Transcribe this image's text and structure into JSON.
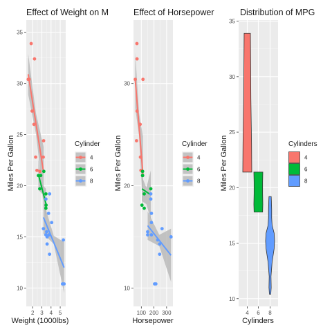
{
  "palette": {
    "4": "#F8766D",
    "6": "#00BA38",
    "8": "#619CFF"
  },
  "panel_bg": "#EBEBEB",
  "ribbon": "#B3B3B3",
  "chart_data": [
    {
      "type": "scatter",
      "title": "Effect of Weight on M",
      "xlabel": "Weight (1000lbs)",
      "ylabel": "Miles Per Gallon",
      "xlim": [
        1.3,
        5.6
      ],
      "ylim": [
        8.2,
        36.2
      ],
      "xticks": [
        2,
        3,
        4,
        5
      ],
      "yticks": [
        10,
        15,
        20,
        25,
        30,
        35
      ],
      "grid": true,
      "smooth": "lm",
      "legend": {
        "title": "Cylinder",
        "labels": [
          "4",
          "6",
          "8"
        ],
        "placement": "right"
      },
      "series": [
        {
          "name": "4",
          "points": [
            [
              2.32,
              22.8
            ],
            [
              3.19,
              24.4
            ],
            [
              3.15,
              22.8
            ],
            [
              2.2,
              32.4
            ],
            [
              1.615,
              30.4
            ],
            [
              1.835,
              33.9
            ],
            [
              2.465,
              21.5
            ],
            [
              1.935,
              27.3
            ],
            [
              2.14,
              26.0
            ],
            [
              1.513,
              30.4
            ],
            [
              2.78,
              21.4
            ]
          ],
          "fit": {
            "x": [
              1.513,
              3.19
            ],
            "y": [
              30.9,
              21.3
            ],
            "ci": [
              [
                1.513,
                28.9,
                32.9
              ],
              [
                2.35,
                25.1,
                27.1
              ],
              [
                3.19,
                18.8,
                23.8
              ]
            ]
          }
        },
        {
          "name": "6",
          "points": [
            [
              2.62,
              21.0
            ],
            [
              2.875,
              21.0
            ],
            [
              3.215,
              21.4
            ],
            [
              3.46,
              18.1
            ],
            [
              3.44,
              19.2
            ],
            [
              3.44,
              17.8
            ],
            [
              2.77,
              19.7
            ]
          ],
          "fit": {
            "x": [
              2.62,
              3.46
            ],
            "y": [
              21.1,
              18.2
            ],
            "ci": [
              [
                2.62,
                19.6,
                22.6
              ],
              [
                3.04,
                19.2,
                20.1
              ],
              [
                3.46,
                16.7,
                19.7
              ]
            ]
          }
        },
        {
          "name": "8",
          "points": [
            [
              3.44,
              18.7
            ],
            [
              3.57,
              14.3
            ],
            [
              4.07,
              16.4
            ],
            [
              3.73,
              17.3
            ],
            [
              3.78,
              15.2
            ],
            [
              5.25,
              10.4
            ],
            [
              5.424,
              10.4
            ],
            [
              5.345,
              14.7
            ],
            [
              3.52,
              15.5
            ],
            [
              3.435,
              15.2
            ],
            [
              3.84,
              13.3
            ],
            [
              3.845,
              19.2
            ],
            [
              3.17,
              15.8
            ],
            [
              3.57,
              15.0
            ]
          ],
          "fit": {
            "x": [
              3.17,
              5.424
            ],
            "y": [
              16.9,
              12.0
            ],
            "ci": [
              [
                3.17,
                15.3,
                18.5
              ],
              [
                4.3,
                14.3,
                15.1
              ],
              [
                5.424,
                9.5,
                14.5
              ]
            ]
          }
        }
      ]
    },
    {
      "type": "scatter",
      "title": "Effect of Horsepower",
      "xlabel": "Horsepower",
      "ylabel": "Miles Per Gallon",
      "xlim": [
        38,
        350
      ],
      "ylim": [
        8.2,
        36.2
      ],
      "xticks": [
        100,
        200,
        300
      ],
      "yticks": [
        10,
        20,
        30
      ],
      "grid": true,
      "smooth": "lm",
      "legend": {
        "title": "Cylinder",
        "labels": [
          "4",
          "6",
          "8"
        ],
        "placement": "right"
      },
      "series": [
        {
          "name": "4",
          "points": [
            [
              93,
              22.8
            ],
            [
              62,
              24.4
            ],
            [
              95,
              22.8
            ],
            [
              66,
              32.4
            ],
            [
              52,
              30.4
            ],
            [
              65,
              33.9
            ],
            [
              97,
              21.5
            ],
            [
              66,
              27.3
            ],
            [
              91,
              26.0
            ],
            [
              113,
              30.4
            ],
            [
              109,
              21.4
            ]
          ],
          "fit": {
            "x": [
              52,
              113
            ],
            "y": [
              30.3,
              21.1
            ],
            "ci": [
              [
                52,
                27.6,
                33.0
              ],
              [
                82,
                24.9,
                27.1
              ],
              [
                113,
                17.4,
                24.8
              ]
            ]
          }
        },
        {
          "name": "6",
          "points": [
            [
              110,
              21.0
            ],
            [
              110,
              21.0
            ],
            [
              110,
              21.4
            ],
            [
              105,
              18.1
            ],
            [
              123,
              19.2
            ],
            [
              123,
              17.8
            ],
            [
              175,
              19.7
            ]
          ],
          "fit": {
            "x": [
              105,
              175
            ],
            "y": [
              19.7,
              19.1
            ],
            "ci": [
              [
                105,
                18.5,
                20.9
              ],
              [
                140,
                18.2,
                19.8
              ],
              [
                175,
                16.7,
                21.5
              ]
            ]
          }
        },
        {
          "name": "8",
          "points": [
            [
              175,
              18.7
            ],
            [
              245,
              14.3
            ],
            [
              180,
              16.4
            ],
            [
              180,
              17.3
            ],
            [
              180,
              15.2
            ],
            [
              205,
              10.4
            ],
            [
              215,
              10.4
            ],
            [
              230,
              14.7
            ],
            [
              150,
              15.5
            ],
            [
              150,
              15.2
            ],
            [
              245,
              13.3
            ],
            [
              175,
              19.2
            ],
            [
              264,
              15.8
            ],
            [
              335,
              15.0
            ]
          ],
          "fit": {
            "x": [
              150,
              335
            ],
            "y": [
              16.1,
              13.2
            ],
            "ci": [
              [
                150,
                14.7,
                17.5
              ],
              [
                242,
                14.1,
                15.2
              ],
              [
                335,
                10.6,
                15.8
              ]
            ]
          }
        }
      ]
    },
    {
      "type": "violin",
      "title": "Distribution of MPG",
      "xlabel": "Cylinders",
      "ylabel": "Miles Per Gallon",
      "categories": [
        "4",
        "6",
        "8"
      ],
      "ylim": [
        9.3,
        35.1
      ],
      "yticks": [
        10,
        15,
        20,
        25,
        30,
        35
      ],
      "grid": true,
      "legend": {
        "title": "Cylinders",
        "labels": [
          "4",
          "6",
          "8"
        ],
        "placement": "right"
      },
      "violins": [
        {
          "category": "4",
          "range": [
            21.4,
            33.9
          ],
          "profile": [
            [
              21.4,
              1.0
            ],
            [
              24.0,
              0.95
            ],
            [
              28.0,
              0.8
            ],
            [
              31.0,
              0.75
            ],
            [
              33.9,
              0.7
            ]
          ]
        },
        {
          "category": "6",
          "range": [
            17.8,
            21.4
          ],
          "profile": [
            [
              17.8,
              0.95
            ],
            [
              18.5,
              1.0
            ],
            [
              19.5,
              0.95
            ],
            [
              20.5,
              0.95
            ],
            [
              21.4,
              1.0
            ]
          ]
        },
        {
          "category": "8",
          "range": [
            10.4,
            19.2
          ],
          "profile": [
            [
              10.4,
              0.15
            ],
            [
              11.0,
              0.25
            ],
            [
              12.0,
              0.2
            ],
            [
              13.3,
              0.45
            ],
            [
              14.5,
              0.9
            ],
            [
              15.2,
              1.0
            ],
            [
              15.9,
              0.9
            ],
            [
              16.6,
              0.45
            ],
            [
              17.3,
              0.35
            ],
            [
              18.0,
              0.35
            ],
            [
              18.7,
              0.3
            ],
            [
              19.2,
              0.25
            ]
          ]
        }
      ]
    }
  ]
}
